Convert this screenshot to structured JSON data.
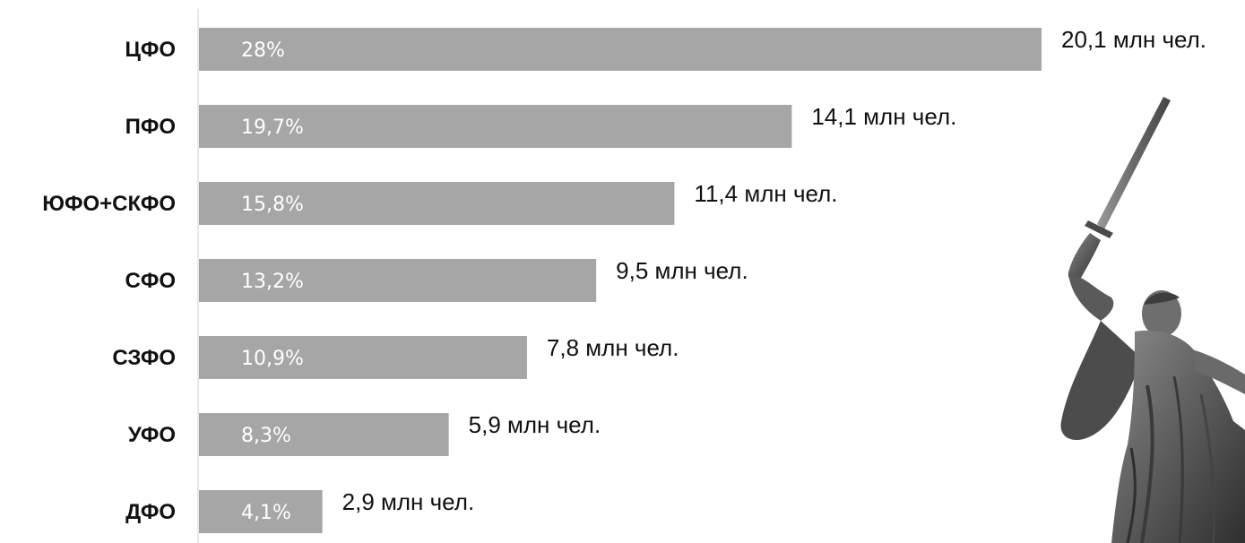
{
  "chart_data": {
    "type": "bar",
    "orientation": "horizontal",
    "categories": [
      "ЦФО",
      "ПФО",
      "ЮФО+СКФО",
      "СФО",
      "СЗФО",
      "УФО",
      "ДФО"
    ],
    "series": [
      {
        "values": [
          28,
          19.7,
          15.8,
          13.2,
          10.9,
          8.3,
          4.1
        ],
        "value_labels": [
          "28%",
          "19,7%",
          "15,8%",
          "13,2%",
          "10,9%",
          "8,3%",
          "4,1%"
        ],
        "value_unit": "%"
      }
    ],
    "annotations": [
      "20,1 млн чел.",
      "14,1 млн чел.",
      "11,4 млн чел.",
      "9,5 млн чел.",
      "7,8 млн чел.",
      "5,9 млн чел.",
      "2,9 млн чел."
    ],
    "population_mln": [
      20.1,
      14.1,
      11.4,
      9.5,
      7.8,
      5.9,
      2.9
    ],
    "xlim": [
      0,
      28
    ],
    "title": "",
    "xlabel": "",
    "ylabel": "",
    "grid": false,
    "legend": "none",
    "colors": {
      "bar": "#a6a6a6",
      "bar_label": "#ffffff",
      "text": "#111111",
      "axis": "#d0d0d0"
    }
  },
  "decoration": {
    "image": "motherland-calls-statue-icon"
  }
}
